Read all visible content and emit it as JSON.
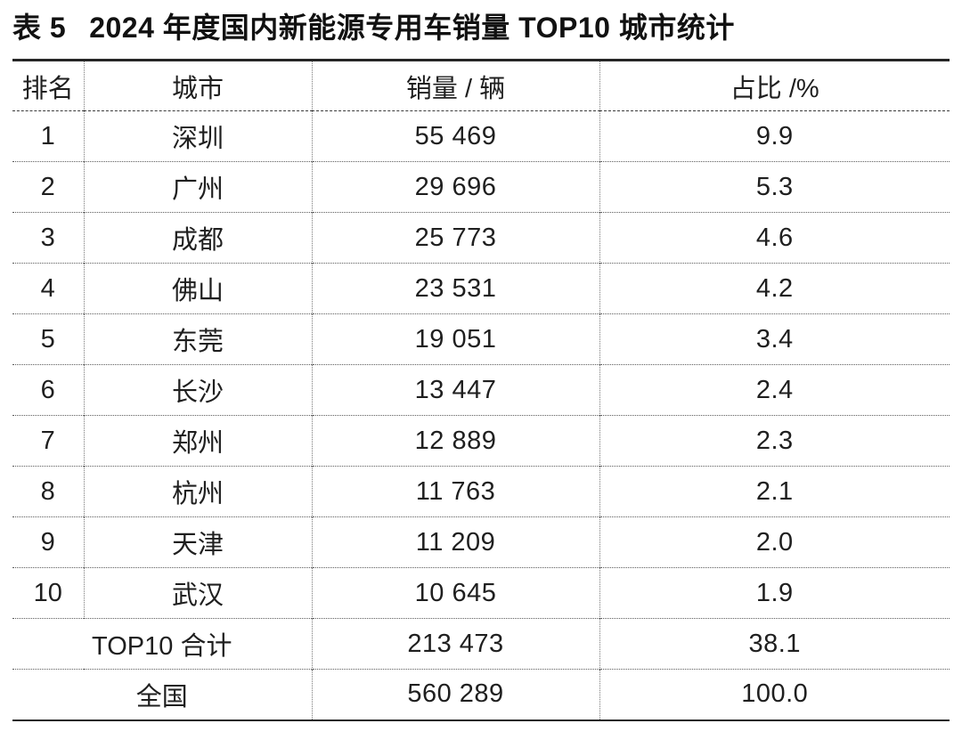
{
  "title": {
    "prefix": "表 5",
    "text": "2024 年度国内新能源专用车销量 TOP10 城市统计"
  },
  "colors": {
    "background": "#ffffff",
    "text": "#1a1a1a",
    "heavy_rule": "#262626",
    "light_rule": "#5c5c5c"
  },
  "table": {
    "headers": {
      "rank": "排名",
      "city": "城市",
      "sales": "销量 / 辆",
      "share": "占比 /%"
    },
    "rows": [
      {
        "rank": "1",
        "city": "深圳",
        "sales": "55 469",
        "share": "9.9"
      },
      {
        "rank": "2",
        "city": "广州",
        "sales": "29 696",
        "share": "5.3"
      },
      {
        "rank": "3",
        "city": "成都",
        "sales": "25 773",
        "share": "4.6"
      },
      {
        "rank": "4",
        "city": "佛山",
        "sales": "23 531",
        "share": "4.2"
      },
      {
        "rank": "5",
        "city": "东莞",
        "sales": "19 051",
        "share": "3.4"
      },
      {
        "rank": "6",
        "city": "长沙",
        "sales": "13 447",
        "share": "2.4"
      },
      {
        "rank": "7",
        "city": "郑州",
        "sales": "12 889",
        "share": "2.3"
      },
      {
        "rank": "8",
        "city": "杭州",
        "sales": "11 763",
        "share": "2.1"
      },
      {
        "rank": "9",
        "city": "天津",
        "sales": "11 209",
        "share": "2.0"
      },
      {
        "rank": "10",
        "city": "武汉",
        "sales": "10 645",
        "share": "1.9"
      }
    ],
    "summary": [
      {
        "label": "TOP10 合计",
        "sales": "213 473",
        "share": "38.1"
      },
      {
        "label": "全国",
        "sales": "560 289",
        "share": "100.0"
      }
    ]
  },
  "chart_data": {
    "type": "table",
    "title": "表 5 2024 年度国内新能源专用车销量 TOP10 城市统计",
    "columns": [
      "排名",
      "城市",
      "销量 / 辆",
      "占比 /%"
    ],
    "rows": [
      [
        1,
        "深圳",
        55469,
        9.9
      ],
      [
        2,
        "广州",
        29696,
        5.3
      ],
      [
        3,
        "成都",
        25773,
        4.6
      ],
      [
        4,
        "佛山",
        23531,
        4.2
      ],
      [
        5,
        "东莞",
        19051,
        3.4
      ],
      [
        6,
        "长沙",
        13447,
        2.4
      ],
      [
        7,
        "郑州",
        12889,
        2.3
      ],
      [
        8,
        "杭州",
        11763,
        2.1
      ],
      [
        9,
        "天津",
        11209,
        2.0
      ],
      [
        10,
        "武汉",
        10645,
        1.9
      ]
    ],
    "summary_rows": [
      [
        "TOP10 合计",
        213473,
        38.1
      ],
      [
        "全国",
        560289,
        100.0
      ]
    ]
  }
}
